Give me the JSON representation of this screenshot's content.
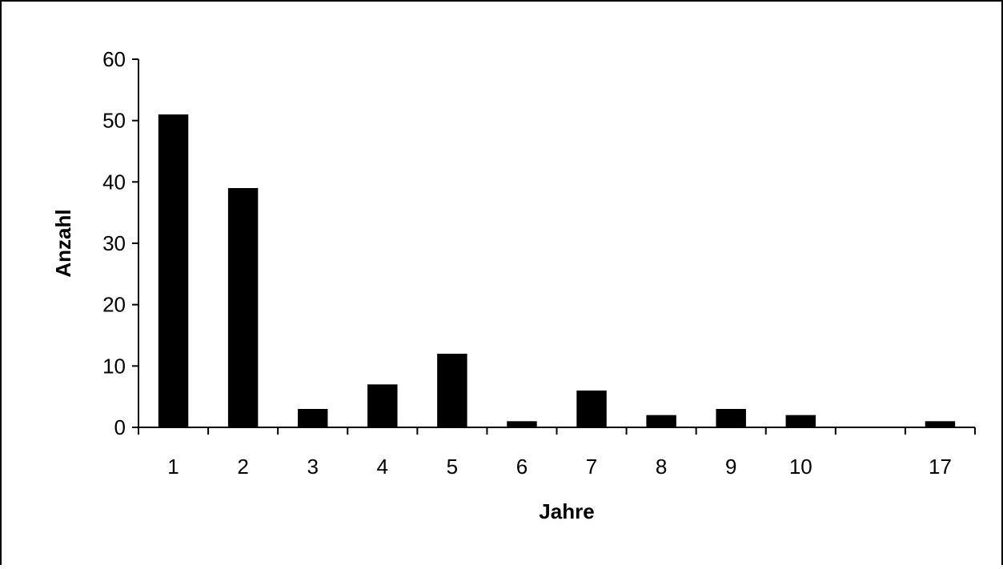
{
  "chart_data": {
    "type": "bar",
    "title": "",
    "xlabel": "Jahre",
    "ylabel": "Anzahl",
    "categories": [
      "1",
      "2",
      "3",
      "4",
      "5",
      "6",
      "7",
      "8",
      "9",
      "10",
      "",
      "17"
    ],
    "values": [
      51,
      39,
      3,
      7,
      12,
      1,
      6,
      2,
      3,
      2,
      null,
      1
    ],
    "ylim": [
      0,
      60
    ],
    "yticks": [
      "0",
      "10",
      "20",
      "30",
      "40",
      "50",
      "60"
    ],
    "grid": false,
    "legend": "none",
    "bar_color": "#000000"
  }
}
